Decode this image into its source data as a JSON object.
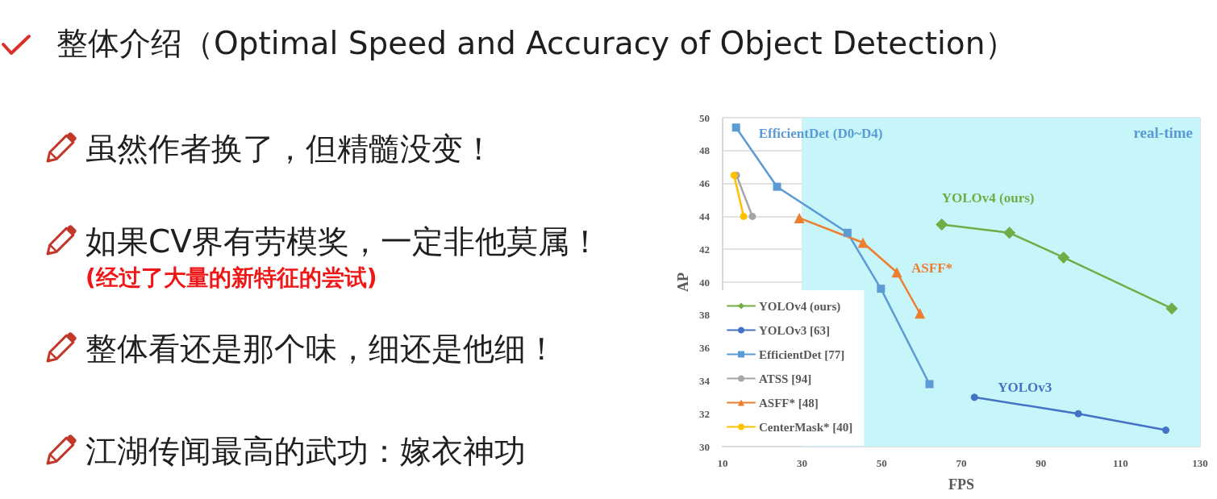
{
  "chart_data": {
    "type": "line",
    "title": "整体介绍（Optimal Speed and Accuracy of Object Detection）",
    "xlabel": "FPS",
    "ylabel": "AP",
    "xlim": [
      10,
      130
    ],
    "xticks": [
      10,
      30,
      50,
      70,
      90,
      110,
      130
    ],
    "ylim": [
      30,
      50
    ],
    "yticks": [
      30,
      32,
      34,
      36,
      38,
      40,
      42,
      44,
      46,
      48,
      50
    ],
    "grid": true,
    "legend": "bottom left",
    "series": [
      {
        "name": "YOLOv4 (ours)",
        "color": "#70ad47",
        "marker": "diamond",
        "x": [
          65.1,
          82.1,
          95.7,
          122.9
        ],
        "values": [
          43.5,
          43.0,
          41.5,
          38.4
        ]
      },
      {
        "name": "YOLOv3 [63]",
        "color": "#4472c4",
        "marker": "circle",
        "x": [
          73.3,
          99.4,
          121.4
        ],
        "values": [
          33.0,
          32.0,
          31.0
        ]
      },
      {
        "name": "EfficientDet [77]",
        "color": "#5b9bd5",
        "marker": "square",
        "x": [
          13.4,
          23.7,
          41.4,
          49.8,
          62.0
        ],
        "values": [
          49.4,
          45.8,
          43.0,
          39.6,
          33.8
        ]
      },
      {
        "name": "ATSS [94]",
        "color": "#a5a5a5",
        "marker": "circle",
        "x": [
          13.5,
          17.5
        ],
        "values": [
          46.5,
          44.0
        ]
      },
      {
        "name": "ASFF* [48]",
        "color": "#ed7d31",
        "marker": "triangle",
        "x": [
          29.3,
          45.3,
          53.8,
          59.6
        ],
        "values": [
          43.9,
          42.4,
          40.6,
          38.1
        ]
      },
      {
        "name": "CenterMask* [40]",
        "color": "#ffc000",
        "marker": "circle",
        "x": [
          12.9,
          15.3
        ],
        "values": [
          46.5,
          44.0
        ]
      }
    ],
    "bands": [
      {
        "axis": "x",
        "from": 30,
        "to": 130,
        "label": "real-time",
        "color": "#c7f6fa"
      }
    ],
    "annotations": [
      {
        "text": "EfficientDet (D0~D4)",
        "x": 13.4,
        "y": 49.4
      },
      {
        "text": "YOLOv4 (ours)",
        "x": 65.1,
        "y": 43.5
      },
      {
        "text": "ASFF*",
        "x": 53.8,
        "y": 40.6
      },
      {
        "text": "YOLOv3",
        "x": 73.3,
        "y": 33.0
      },
      "虽然作者换了，但精髓没变！",
      "如果CV界有劳模奖，一定非他莫属！",
      "(经过了大量的新特征的尝试)",
      "整体看还是那个味，细还是他细！",
      "江湖传闻最高的武功：嫁衣神功"
    ]
  }
}
